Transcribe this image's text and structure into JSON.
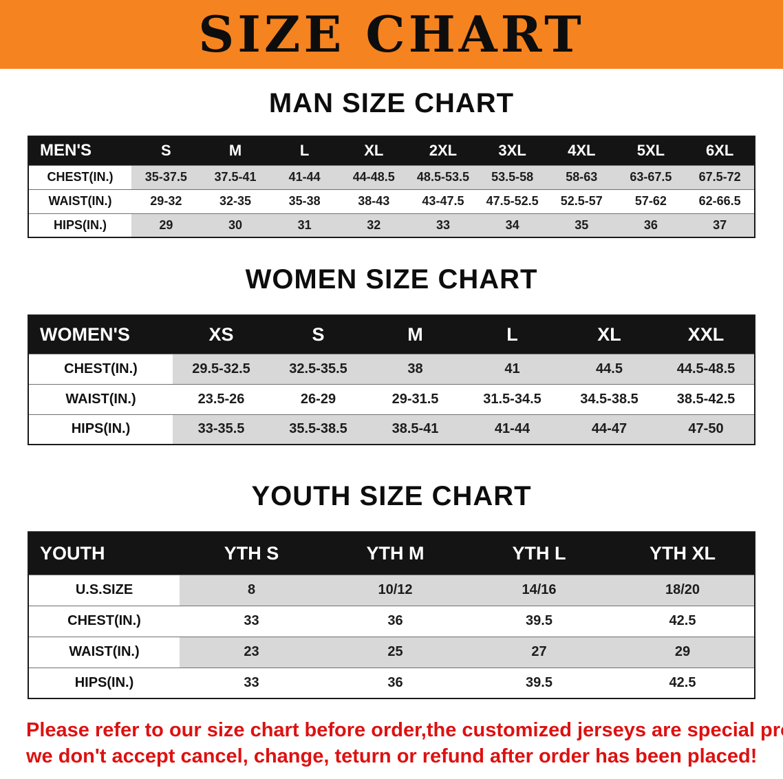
{
  "banner": {
    "title": "SIZE CHART"
  },
  "colors": {
    "banner_bg": "#f5831f",
    "table_header_bg": "#141414",
    "shaded_row": "#d8d8d8",
    "disclaimer_text": "#dd1111"
  },
  "sections": [
    {
      "id": "men",
      "heading": "MAN SIZE CHART",
      "table": {
        "header": [
          "MEN'S",
          "S",
          "M",
          "L",
          "XL",
          "2XL",
          "3XL",
          "4XL",
          "5XL",
          "6XL"
        ],
        "rows": [
          {
            "label": "CHEST(IN.)",
            "values": [
              "35-37.5",
              "37.5-41",
              "41-44",
              "44-48.5",
              "48.5-53.5",
              "53.5-58",
              "58-63",
              "63-67.5",
              "67.5-72"
            ]
          },
          {
            "label": "WAIST(IN.)",
            "values": [
              "29-32",
              "32-35",
              "35-38",
              "38-43",
              "43-47.5",
              "47.5-52.5",
              "52.5-57",
              "57-62",
              "62-66.5"
            ]
          },
          {
            "label": "HIPS(IN.)",
            "values": [
              "29",
              "30",
              "31",
              "32",
              "33",
              "34",
              "35",
              "36",
              "37"
            ]
          }
        ]
      }
    },
    {
      "id": "women",
      "heading": "WOMEN SIZE CHART",
      "table": {
        "header": [
          "WOMEN'S",
          "XS",
          "S",
          "M",
          "L",
          "XL",
          "XXL"
        ],
        "rows": [
          {
            "label": "CHEST(IN.)",
            "values": [
              "29.5-32.5",
              "32.5-35.5",
              "38",
              "41",
              "44.5",
              "44.5-48.5"
            ]
          },
          {
            "label": "WAIST(IN.)",
            "values": [
              "23.5-26",
              "26-29",
              "29-31.5",
              "31.5-34.5",
              "34.5-38.5",
              "38.5-42.5"
            ]
          },
          {
            "label": "HIPS(IN.)",
            "values": [
              "33-35.5",
              "35.5-38.5",
              "38.5-41",
              "41-44",
              "44-47",
              "47-50"
            ]
          }
        ]
      }
    },
    {
      "id": "youth",
      "heading": "YOUTH SIZE CHART",
      "table": {
        "header": [
          "YOUTH",
          "YTH S",
          "YTH M",
          "YTH L",
          "YTH XL"
        ],
        "rows": [
          {
            "label": "U.S.SIZE",
            "values": [
              "8",
              "10/12",
              "14/16",
              "18/20"
            ]
          },
          {
            "label": "CHEST(IN.)",
            "values": [
              "33",
              "36",
              "39.5",
              "42.5"
            ]
          },
          {
            "label": "WAIST(IN.)",
            "values": [
              "23",
              "25",
              "27",
              "29"
            ]
          },
          {
            "label": "HIPS(IN.)",
            "values": [
              "33",
              "36",
              "39.5",
              "42.5"
            ]
          }
        ]
      }
    }
  ],
  "disclaimer": {
    "line1": "Please refer to our size chart before order,the customized jerseys are special products,",
    "line2": "we don't accept cancel, change, teturn or refund after order has been placed!"
  }
}
